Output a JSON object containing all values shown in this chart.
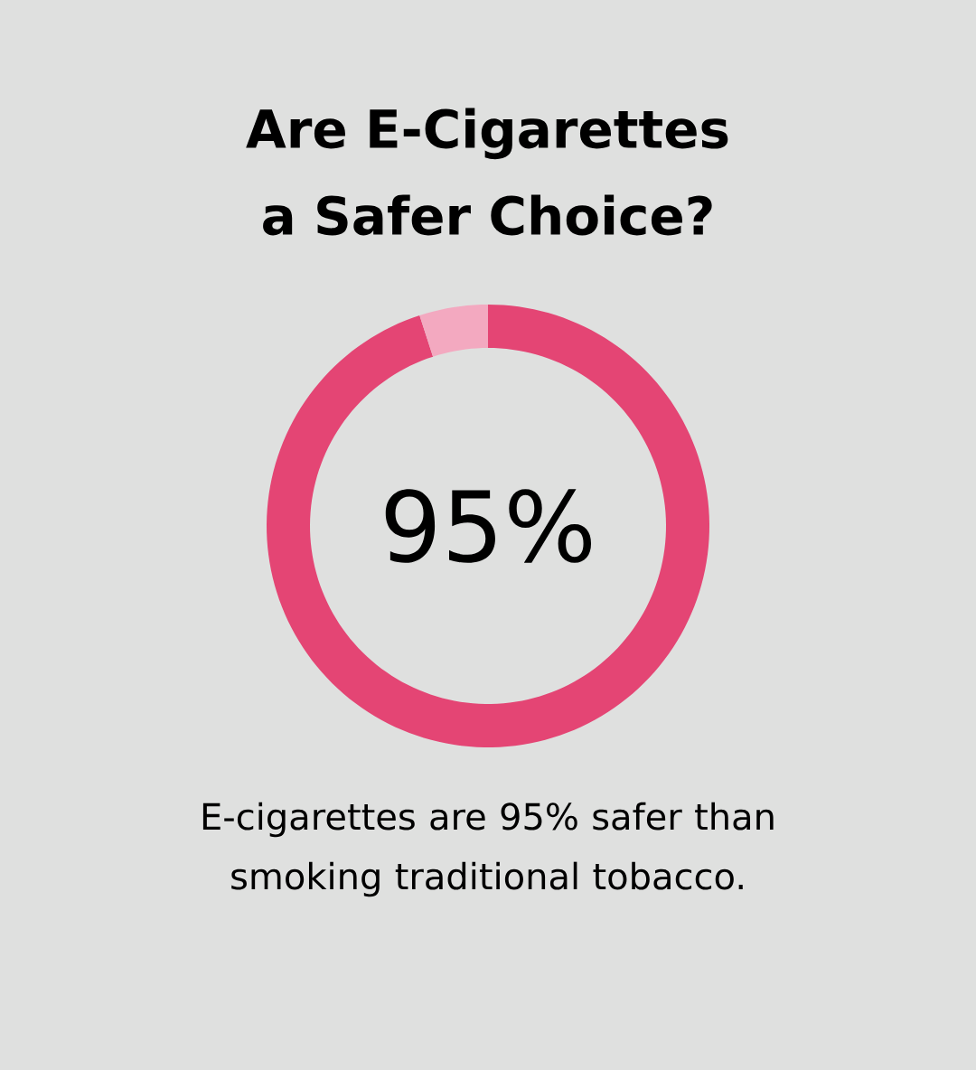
{
  "chart_data": {
    "type": "donut",
    "title": "Are E-Cigarettes a Safer Choice?",
    "categories": [
      null,
      null
    ],
    "values": [
      95,
      5
    ],
    "colors": [
      "#e44574",
      "#f3a9c0"
    ],
    "annotations": [
      "95%",
      "E-cigarettes are 95% safer than smoking traditional tobacco."
    ]
  }
}
